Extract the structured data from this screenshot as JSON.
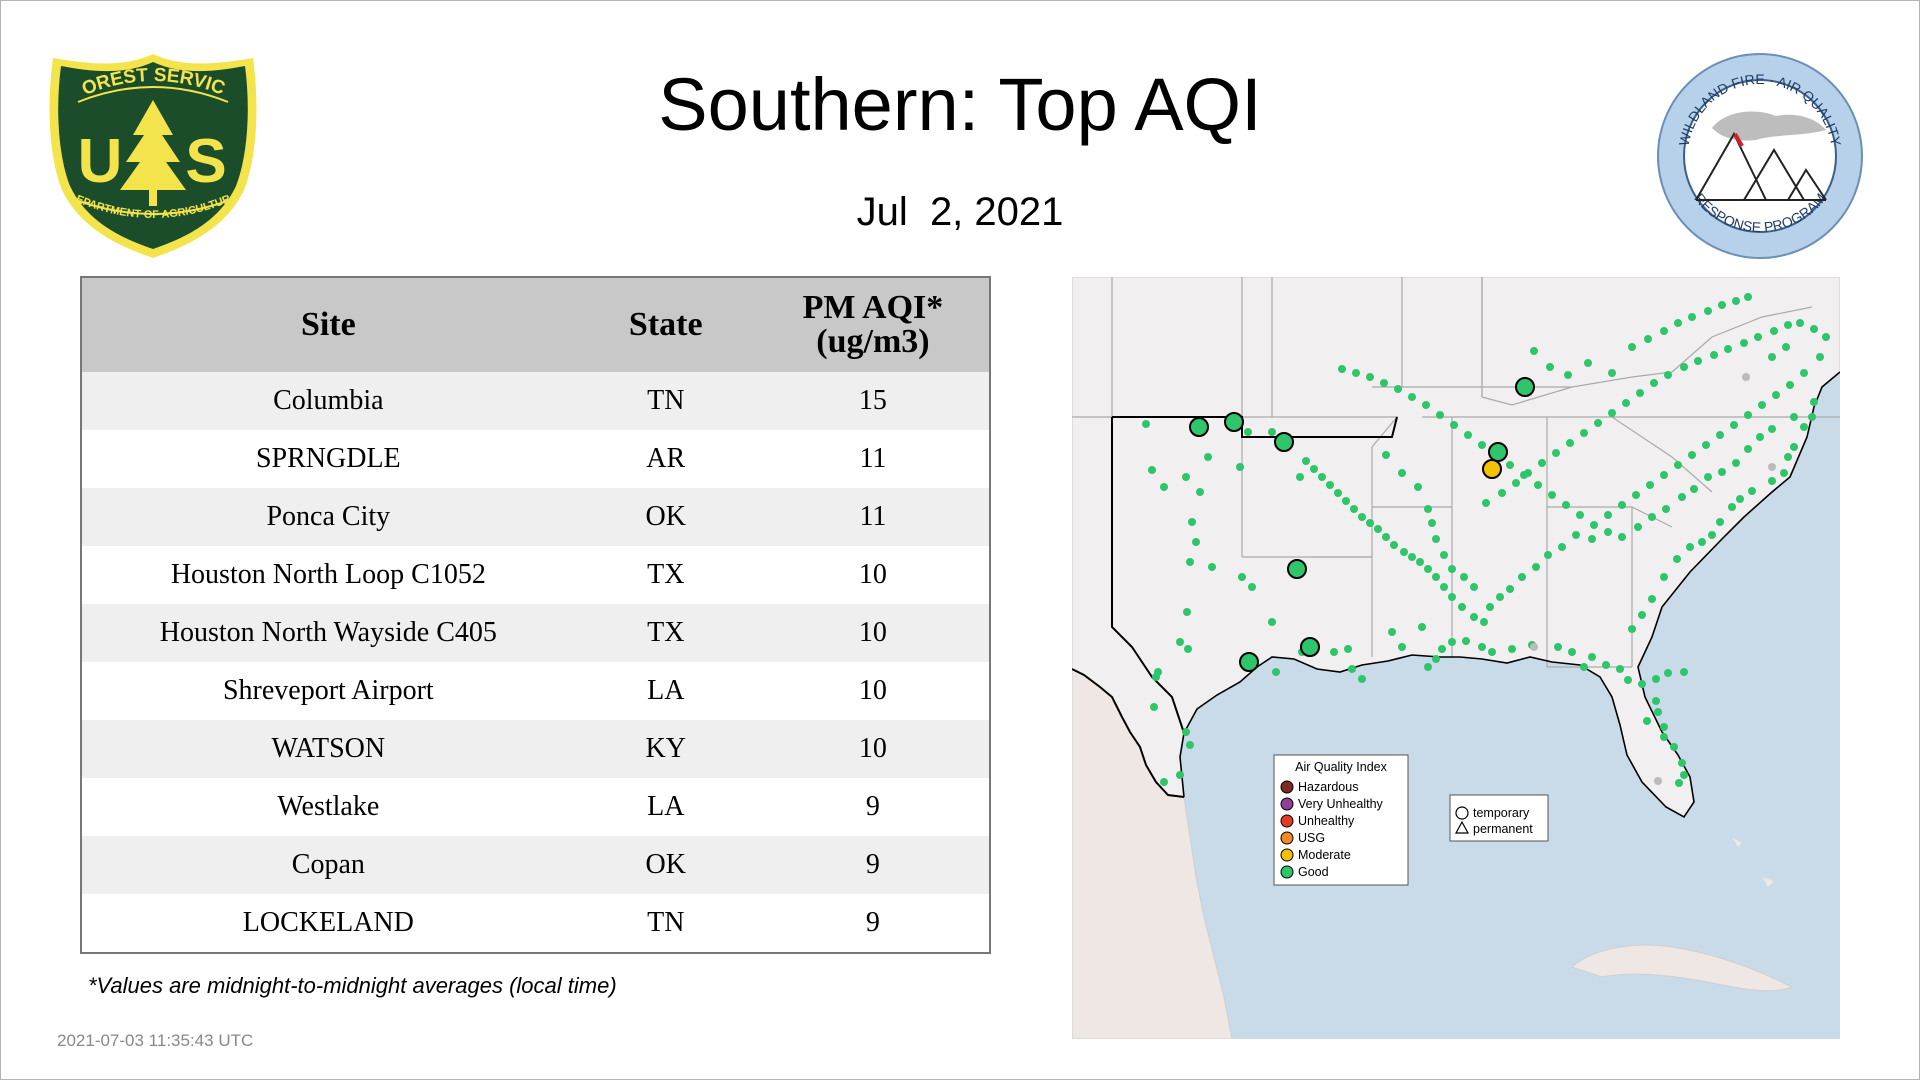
{
  "title": "Southern: Top AQI",
  "date": "Jul  2, 2021",
  "logos": {
    "forest_service": {
      "top_text": "FOREST SERVICE",
      "initials_left": "U",
      "initials_right": "S",
      "bottom_text": "DEPARTMENT OF AGRICULTURE"
    },
    "wildland_fire": {
      "ring_text_top": "WILDLAND FIRE · AIR QUALITY",
      "ring_text_bottom": "RESPONSE PROGRAM"
    }
  },
  "table": {
    "headers": {
      "site": "Site",
      "state": "State",
      "aqi_line1": "PM AQI*",
      "aqi_line2": "(ug/m3)"
    },
    "rows": [
      {
        "site": "Columbia",
        "state": "TN",
        "aqi": "15"
      },
      {
        "site": "SPRNGDLE",
        "state": "AR",
        "aqi": "11"
      },
      {
        "site": "Ponca City",
        "state": "OK",
        "aqi": "11"
      },
      {
        "site": "Houston North Loop C1052",
        "state": "TX",
        "aqi": "10"
      },
      {
        "site": "Houston North Wayside C405",
        "state": "TX",
        "aqi": "10"
      },
      {
        "site": "Shreveport Airport",
        "state": "LA",
        "aqi": "10"
      },
      {
        "site": "WATSON",
        "state": "KY",
        "aqi": "10"
      },
      {
        "site": "Westlake",
        "state": "LA",
        "aqi": "9"
      },
      {
        "site": "Copan",
        "state": "OK",
        "aqi": "9"
      },
      {
        "site": "LOCKELAND",
        "state": "TN",
        "aqi": "9"
      }
    ]
  },
  "footnote": "*Values are midnight-to-midnight averages (local time)",
  "timestamp": "2021-07-03 11:35:43 UTC",
  "map": {
    "legend": {
      "title": "Air Quality Index",
      "items": [
        {
          "label": "Hazardous",
          "color": "#7e2a1e"
        },
        {
          "label": "Very Unhealthy",
          "color": "#8f3f97"
        },
        {
          "label": "Unhealthy",
          "color": "#e53b25"
        },
        {
          "label": "USG",
          "color": "#f18c22"
        },
        {
          "label": "Moderate",
          "color": "#f2c200"
        },
        {
          "label": "Good",
          "color": "#2ec56b"
        }
      ]
    },
    "marker_legend": {
      "temporary": "temporary",
      "permanent": "permanent"
    },
    "colors": {
      "water": "#c9dbe9",
      "land": "#f1efef",
      "state_line": "#aaaaaa",
      "region_outline": "#000000",
      "good": "#2ec56b",
      "moderate": "#f2c200",
      "no_data": "#bbbbbb"
    }
  }
}
